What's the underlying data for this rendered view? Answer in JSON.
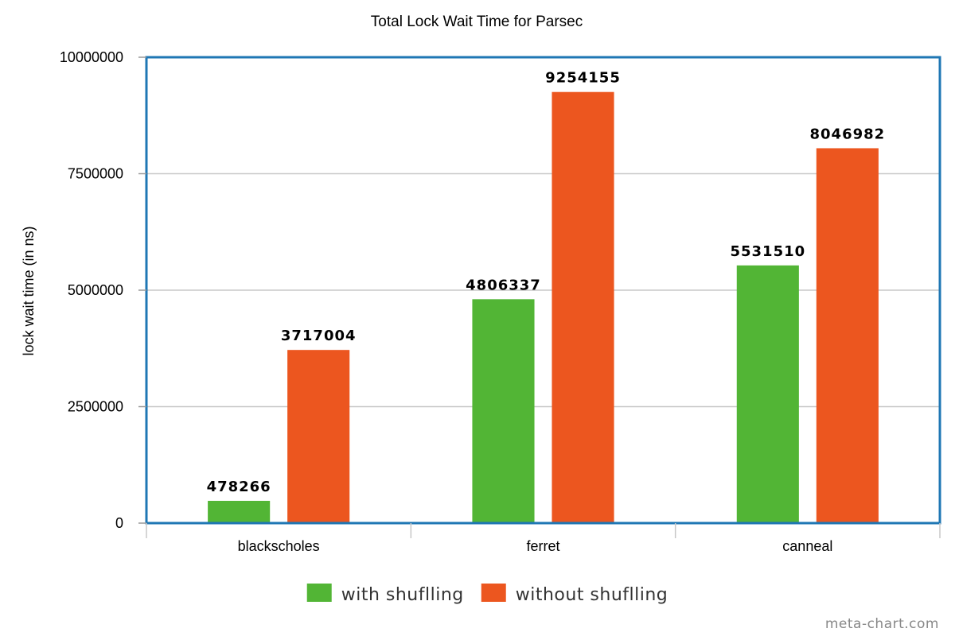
{
  "chart_data": {
    "type": "bar",
    "title": "Total Lock Wait Time for Parsec",
    "xlabel": "",
    "ylabel": "lock wait time (in ns)",
    "categories": [
      "blackscholes",
      "ferret",
      "canneal"
    ],
    "series": [
      {
        "name": "with shuflling",
        "color": "#52b535",
        "values": [
          478266,
          4806337,
          5531510
        ],
        "labels": [
          "478266",
          "4806337",
          "5531510"
        ]
      },
      {
        "name": "without shuflling",
        "color": "#ec561f",
        "values": [
          3717004,
          9254155,
          8046982
        ],
        "labels": [
          "3717004",
          "9254155",
          "8046982"
        ]
      }
    ],
    "ylim": [
      0,
      10000000
    ],
    "yticks": [
      0,
      2500000,
      5000000,
      7500000,
      10000000
    ],
    "ytick_labels": [
      "0",
      "2500000",
      "5000000",
      "7500000",
      "10000000"
    ],
    "grid": true,
    "legend_position": "bottom-center",
    "frame_color": "#1f77b4",
    "watermark": "meta-chart.com"
  }
}
